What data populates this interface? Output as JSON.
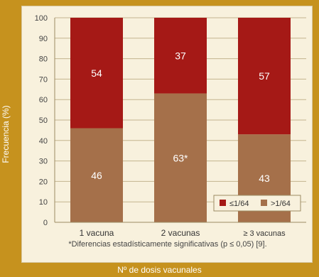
{
  "chart_data": {
    "type": "bar",
    "stacked": true,
    "title": "",
    "ylabel": "Frecuencia (%)",
    "xlabel": "Nº de dosis vacunales",
    "ylim": [
      0,
      100
    ],
    "yticks": [
      0,
      10,
      20,
      30,
      40,
      50,
      60,
      70,
      80,
      90,
      100
    ],
    "grid": true,
    "legend_position": "bottom-right",
    "categories": [
      "1 vacuna",
      "2 vacunas",
      "≥ 3 vacunas"
    ],
    "series": [
      {
        "name": ">1/64",
        "color": "#a5704a",
        "values": [
          46,
          63,
          43
        ],
        "labels": [
          "46",
          "63*",
          "43"
        ]
      },
      {
        "name": "≤1/64",
        "color": "#a51916",
        "values": [
          54,
          37,
          57
        ],
        "labels": [
          "54",
          "37",
          "57"
        ]
      }
    ],
    "footnote": "*Diferencias estadísticamente significativas (p ≤ 0,05) [9]."
  }
}
